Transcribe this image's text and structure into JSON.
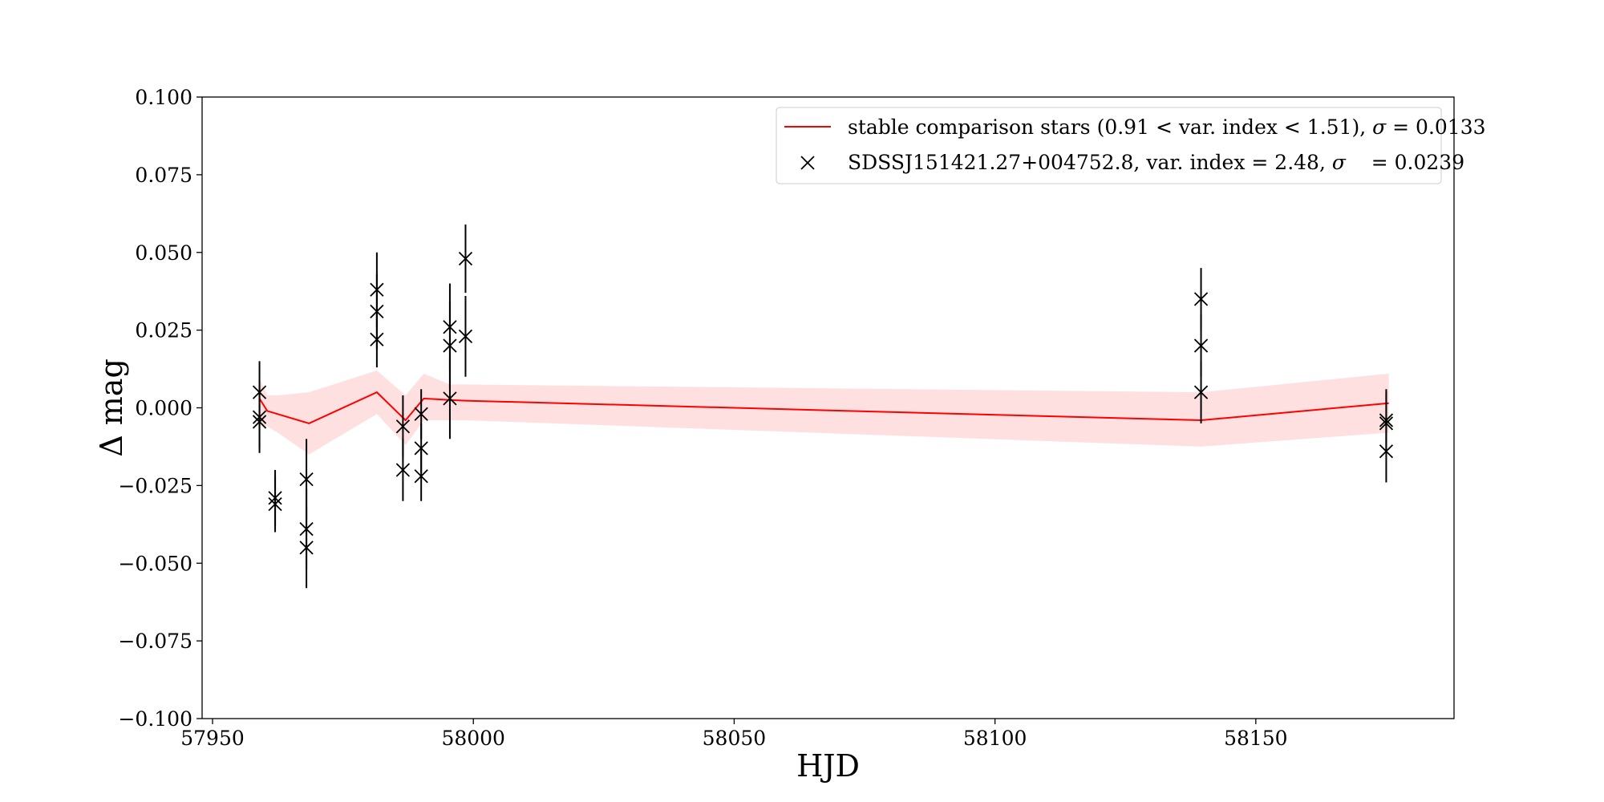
{
  "chart_data": {
    "type": "line",
    "title": "",
    "xlabel": "HJD",
    "ylabel": "Δ mag",
    "xlim": [
      57948,
      58188
    ],
    "ylim": [
      -0.1,
      0.1
    ],
    "x_ticks": [
      57950,
      58000,
      58050,
      58100,
      58150
    ],
    "x_tick_labels": [
      "57950",
      "58000",
      "58050",
      "58100",
      "58150"
    ],
    "y_ticks": [
      0.1,
      0.075,
      0.05,
      0.025,
      0.0,
      -0.025,
      -0.05,
      -0.075,
      -0.1
    ],
    "y_tick_labels": [
      "0.100",
      "0.075",
      "0.050",
      "0.025",
      "0.000",
      "−0.025",
      "−0.050",
      "−0.075",
      "−0.100"
    ],
    "grid": false,
    "legend_position": "top-right",
    "colors": {
      "comparison_line": "#ff0000",
      "comparison_band": "#ffcccc",
      "target": "#000000"
    },
    "series": [
      {
        "name": "stable comparison stars (0.91 < var. index < 1.51), σ = 0.0133",
        "kind": "line_with_band",
        "x": [
          57959.0,
          57960.5,
          57962.5,
          57968.5,
          57981.5,
          57987.0,
          57990.5,
          57995.5,
          57998.5,
          58139.5,
          58175.5
        ],
        "y": [
          0.003,
          -0.001,
          -0.002,
          -0.005,
          0.005,
          -0.004,
          0.003,
          0.0025,
          0.0023,
          -0.004,
          0.0015
        ],
        "band_upper": [
          0.0095,
          0.004,
          0.004,
          0.005,
          0.012,
          0.004,
          0.011,
          0.0075,
          0.0075,
          0.005,
          0.011
        ],
        "band_lower": [
          -0.005,
          -0.006,
          -0.008,
          -0.015,
          -0.002,
          -0.012,
          -0.004,
          -0.004,
          -0.004,
          -0.0125,
          -0.008
        ]
      },
      {
        "name": "SDSSJ151421.27+004752.8, var. index = 2.48, σ    = 0.0239",
        "kind": "errorbar_scatter",
        "marker": "x",
        "points": [
          {
            "x": 57959.0,
            "y": 0.005,
            "err": 0.01
          },
          {
            "x": 57959.0,
            "y": -0.003,
            "err": 0.01
          },
          {
            "x": 57959.0,
            "y": -0.0045,
            "err": 0.01
          },
          {
            "x": 57962.0,
            "y": -0.029,
            "err": 0.009
          },
          {
            "x": 57962.0,
            "y": -0.031,
            "err": 0.009
          },
          {
            "x": 57968.0,
            "y": -0.023,
            "err": 0.013
          },
          {
            "x": 57968.0,
            "y": -0.039,
            "err": 0.013
          },
          {
            "x": 57968.0,
            "y": -0.045,
            "err": 0.013
          },
          {
            "x": 57981.5,
            "y": 0.038,
            "err": 0.012
          },
          {
            "x": 57981.5,
            "y": 0.031,
            "err": 0.012
          },
          {
            "x": 57981.5,
            "y": 0.022,
            "err": 0.009
          },
          {
            "x": 57986.5,
            "y": -0.006,
            "err": 0.01
          },
          {
            "x": 57986.5,
            "y": -0.02,
            "err": 0.01
          },
          {
            "x": 57990.0,
            "y": -0.002,
            "err": 0.008
          },
          {
            "x": 57990.0,
            "y": -0.013,
            "err": 0.008
          },
          {
            "x": 57990.0,
            "y": -0.022,
            "err": 0.008
          },
          {
            "x": 57995.5,
            "y": 0.026,
            "err": 0.014
          },
          {
            "x": 57995.5,
            "y": 0.02,
            "err": 0.014
          },
          {
            "x": 57995.5,
            "y": 0.003,
            "err": 0.013
          },
          {
            "x": 57998.5,
            "y": 0.048,
            "err": 0.011
          },
          {
            "x": 57998.5,
            "y": 0.023,
            "err": 0.013
          },
          {
            "x": 58139.5,
            "y": 0.035,
            "err": 0.01
          },
          {
            "x": 58139.5,
            "y": 0.02,
            "err": 0.01
          },
          {
            "x": 58139.5,
            "y": 0.005,
            "err": 0.01
          },
          {
            "x": 58175.0,
            "y": -0.004,
            "err": 0.01
          },
          {
            "x": 58175.0,
            "y": -0.005,
            "err": 0.01
          },
          {
            "x": 58175.0,
            "y": -0.014,
            "err": 0.01
          }
        ]
      }
    ],
    "legend": [
      {
        "text_before": "stable comparison stars (0.91 ",
        "op1": "<",
        "text_mid": " var. index ",
        "op2": "<",
        "text_after": " 1.51), ",
        "sigma": "σ",
        "text_end": " = 0.0133"
      },
      {
        "text_before": "SDSSJ151421.27+004752.8, var. index = 2.48, ",
        "sigma": "σ",
        "text_end": "    = 0.0239"
      }
    ]
  }
}
